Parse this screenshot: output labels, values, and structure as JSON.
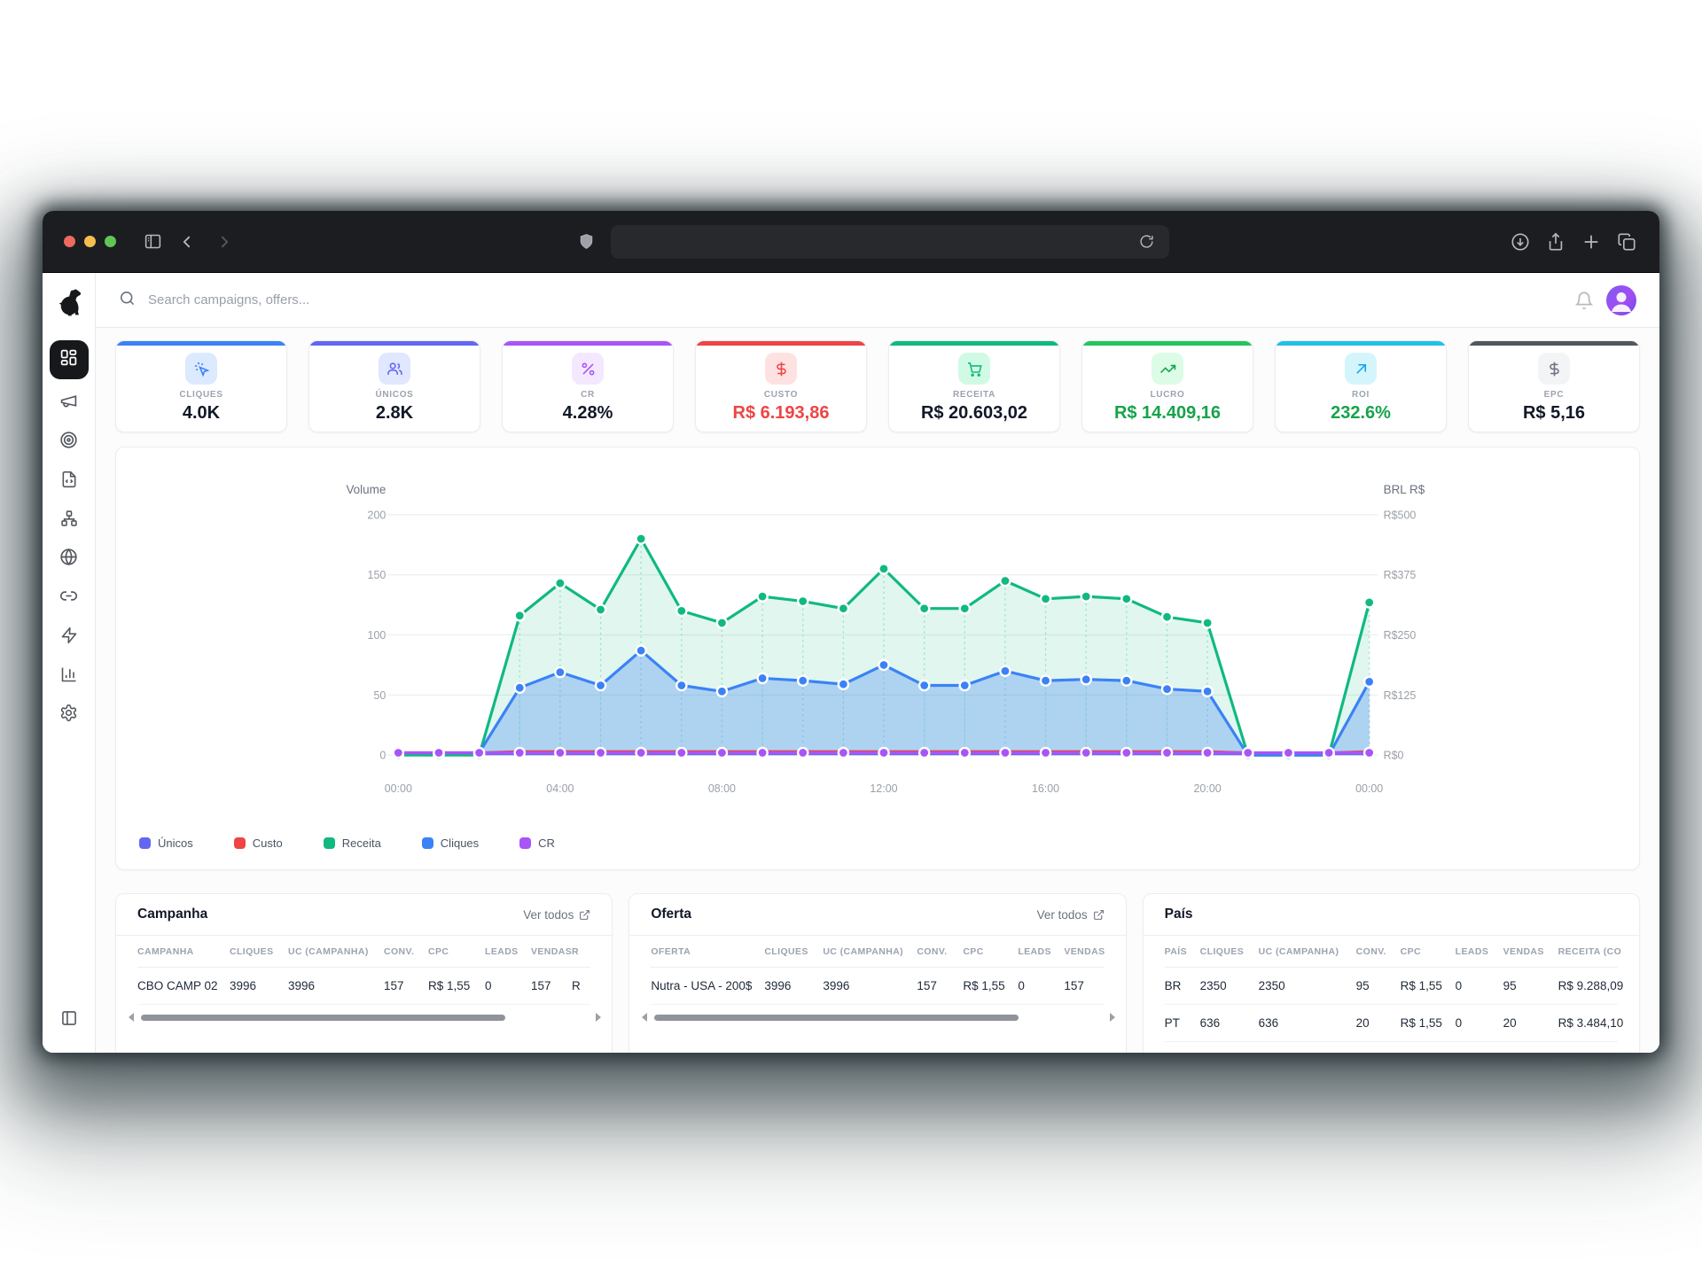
{
  "browser": {
    "url_value": "",
    "traffic_lights": {
      "close": "#ee6a5e",
      "minimize": "#f5bf4f",
      "zoom": "#61c554"
    }
  },
  "app": {
    "search_placeholder": "Search campaigns, offers..."
  },
  "stats": [
    {
      "label": "CLIQUES",
      "value": "4.0K",
      "accent": "#3b82f6",
      "badge_bg": "#dbeafe",
      "icon_color": "#3b82f6",
      "value_color": "#111827",
      "icon": "cursor-click-icon"
    },
    {
      "label": "ÚNICOS",
      "value": "2.8K",
      "accent": "#6366f1",
      "badge_bg": "#e0e7ff",
      "icon_color": "#6366f1",
      "value_color": "#111827",
      "icon": "users-icon"
    },
    {
      "label": "CR",
      "value": "4.28%",
      "accent": "#a855f7",
      "badge_bg": "#f3e8ff",
      "icon_color": "#a855f7",
      "value_color": "#111827",
      "icon": "percent-icon"
    },
    {
      "label": "CUSTO",
      "value": "R$ 6.193,86",
      "accent": "#ef4444",
      "badge_bg": "#fee2e2",
      "icon_color": "#ef4444",
      "value_color": "#ef4444",
      "icon": "dollar-icon"
    },
    {
      "label": "RECEITA",
      "value": "R$ 20.603,02",
      "accent": "#10b981",
      "badge_bg": "#d1fae5",
      "icon_color": "#10b981",
      "value_color": "#111827",
      "icon": "cart-icon"
    },
    {
      "label": "LUCRO",
      "value": "R$ 14.409,16",
      "accent": "#22c55e",
      "badge_bg": "#dcfce7",
      "icon_color": "#16a34a",
      "value_color": "#16a34a",
      "icon": "trending-up-icon"
    },
    {
      "label": "ROI",
      "value": "232.6%",
      "accent": "#22c0e8",
      "badge_bg": "#d5f5fd",
      "icon_color": "#0ea5e9",
      "value_color": "#16a34a",
      "icon": "arrow-up-right-icon"
    },
    {
      "label": "EPC",
      "value": "R$ 5,16",
      "accent": "#52565e",
      "badge_bg": "#f3f4f6",
      "icon_color": "#6b7280",
      "value_color": "#111827",
      "icon": "dollar-icon"
    }
  ],
  "chart_data": {
    "type": "line",
    "title_left_axis": "Volume",
    "title_right_axis": "BRL R$",
    "ylim": [
      0,
      200
    ],
    "left_ticks": [
      200,
      150,
      100,
      50,
      0
    ],
    "right_tick_labels": [
      "R$500",
      "R$375",
      "R$250",
      "R$125",
      "R$0"
    ],
    "x_tick_labels": [
      "00:00",
      "04:00",
      "08:00",
      "12:00",
      "16:00",
      "20:00",
      "00:00"
    ],
    "x_tick_indices": [
      0,
      4,
      8,
      12,
      16,
      20,
      24
    ],
    "grid": true,
    "legend_position": "bottom-left",
    "series": [
      {
        "name": "Únicos",
        "color": "#6366f1",
        "area": false,
        "dots": false,
        "values": [
          1,
          1,
          1,
          1,
          1,
          1,
          1,
          1,
          1,
          1,
          1,
          1,
          1,
          1,
          1,
          1,
          1,
          1,
          1,
          1,
          1,
          1,
          1,
          1,
          1
        ]
      },
      {
        "name": "Custo",
        "color": "#ef4444",
        "area": false,
        "dots": false,
        "values": [
          2,
          2,
          2,
          3,
          3,
          3,
          3,
          3,
          3,
          3,
          3,
          3,
          3,
          3,
          3,
          3,
          3,
          3,
          3,
          3,
          3,
          2,
          2,
          2,
          3
        ]
      },
      {
        "name": "Receita",
        "color": "#10b981",
        "area": true,
        "dots": true,
        "values": [
          0,
          0,
          0,
          116,
          143,
          121,
          180,
          120,
          110,
          132,
          128,
          122,
          155,
          122,
          122,
          145,
          130,
          132,
          130,
          115,
          110,
          0,
          0,
          0,
          127
        ]
      },
      {
        "name": "Cliques",
        "color": "#3b82f6",
        "area": true,
        "dots": true,
        "values": [
          2,
          2,
          2,
          56,
          69,
          58,
          87,
          58,
          53,
          64,
          62,
          59,
          75,
          58,
          58,
          70,
          62,
          63,
          62,
          55,
          53,
          0,
          0,
          0,
          61
        ]
      },
      {
        "name": "CR",
        "color": "#a855f7",
        "area": false,
        "dots": true,
        "values": [
          2,
          2,
          2,
          2,
          2,
          2,
          2,
          2,
          2,
          2,
          2,
          2,
          2,
          2,
          2,
          2,
          2,
          2,
          2,
          2,
          2,
          2,
          2,
          2,
          2
        ]
      }
    ]
  },
  "tables": {
    "campanha": {
      "title": "Campanha",
      "link_label": "Ver todos",
      "columns": [
        "CAMPANHA",
        "CLIQUES",
        "UC (CAMPANHA)",
        "CONV.",
        "CPC",
        "LEADS",
        "VENDAS",
        "R"
      ],
      "rows": [
        [
          "CBO CAMP 02",
          "3996",
          "3996",
          "157",
          "R$ 1,55",
          "0",
          "157",
          "R"
        ]
      ]
    },
    "oferta": {
      "title": "Oferta",
      "link_label": "Ver todos",
      "columns": [
        "OFERTA",
        "CLIQUES",
        "UC (CAMPANHA)",
        "CONV.",
        "CPC",
        "LEADS",
        "VENDAS"
      ],
      "rows": [
        [
          "Nutra - USA - 200$",
          "3996",
          "3996",
          "157",
          "R$ 1,55",
          "0",
          "157"
        ]
      ]
    },
    "pais": {
      "title": "País",
      "columns": [
        "PAÍS",
        "CLIQUES",
        "UC (CAMPANHA)",
        "CONV.",
        "CPC",
        "LEADS",
        "VENDAS",
        "RECEITA (CO"
      ],
      "rows": [
        [
          "BR",
          "2350",
          "2350",
          "95",
          "R$ 1,55",
          "0",
          "95",
          "R$ 9.288,09"
        ],
        [
          "PT",
          "636",
          "636",
          "20",
          "R$ 1,55",
          "0",
          "20",
          "R$ 3.484,10"
        ]
      ]
    }
  }
}
